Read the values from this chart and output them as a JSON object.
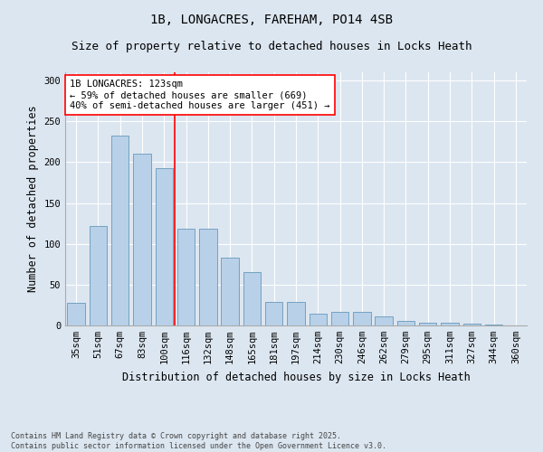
{
  "title1": "1B, LONGACRES, FAREHAM, PO14 4SB",
  "title2": "Size of property relative to detached houses in Locks Heath",
  "xlabel": "Distribution of detached houses by size in Locks Heath",
  "ylabel": "Number of detached properties",
  "categories": [
    "35sqm",
    "51sqm",
    "67sqm",
    "83sqm",
    "100sqm",
    "116sqm",
    "132sqm",
    "148sqm",
    "165sqm",
    "181sqm",
    "197sqm",
    "214sqm",
    "230sqm",
    "246sqm",
    "262sqm",
    "279sqm",
    "295sqm",
    "311sqm",
    "327sqm",
    "344sqm",
    "360sqm"
  ],
  "values": [
    28,
    122,
    233,
    210,
    193,
    118,
    118,
    83,
    65,
    29,
    29,
    14,
    17,
    17,
    11,
    6,
    3,
    3,
    2,
    1,
    0
  ],
  "bar_color": "#b8d0e8",
  "bar_edge_color": "#6699bb",
  "vline_color": "red",
  "vline_pos": 4.5,
  "annotation_text": "1B LONGACRES: 123sqm\n← 59% of detached houses are smaller (669)\n40% of semi-detached houses are larger (451) →",
  "annotation_box_color": "white",
  "annotation_box_edge_color": "red",
  "ylim": [
    0,
    310
  ],
  "yticks": [
    0,
    50,
    100,
    150,
    200,
    250,
    300
  ],
  "fig_bg_color": "#dce6f0",
  "plot_bg_color": "#dce6f0",
  "grid_color": "#ffffff",
  "footnote": "Contains HM Land Registry data © Crown copyright and database right 2025.\nContains public sector information licensed under the Open Government Licence v3.0.",
  "title_fontsize": 10,
  "subtitle_fontsize": 9,
  "axis_label_fontsize": 8.5,
  "tick_fontsize": 7.5,
  "annotation_fontsize": 7.5,
  "footnote_fontsize": 6
}
